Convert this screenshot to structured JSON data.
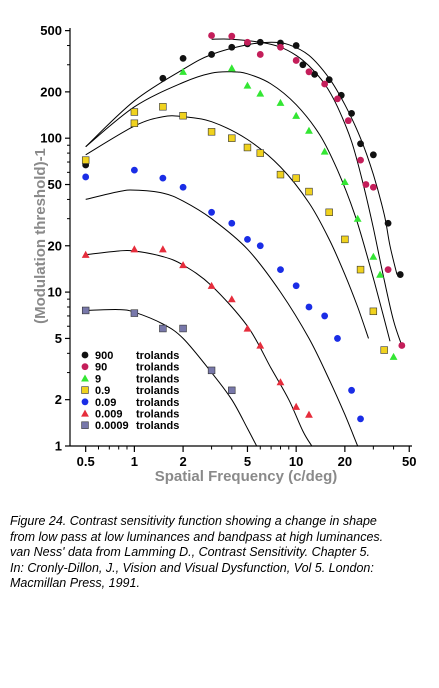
{
  "chart_data": {
    "type": "scatter",
    "title": "",
    "xlabel": "Spatial Frequency (c/deg)",
    "ylabel": "(Modulation threshold)-1",
    "xscale": "log",
    "yscale": "log",
    "xlim": [
      0.4,
      52
    ],
    "ylim": [
      1,
      520
    ],
    "xticks": [
      0.5,
      1,
      2,
      5,
      10,
      20,
      50
    ],
    "xtick_labels": [
      "0.5",
      "1",
      "2",
      "5",
      "10",
      "20",
      "50"
    ],
    "yticks": [
      1,
      2,
      5,
      10,
      20,
      50,
      100,
      200,
      500
    ],
    "ytick_labels": [
      "1",
      "2",
      "5",
      "10",
      "20",
      "50",
      "100",
      "200",
      "500"
    ],
    "legend_position": "bottom-left",
    "grid": false,
    "series": [
      {
        "name": "900",
        "unit": "trolands",
        "marker": "circle",
        "color": "#111111",
        "points": [
          [
            0.5,
            67
          ],
          [
            1.5,
            245
          ],
          [
            2,
            330
          ],
          [
            3,
            350
          ],
          [
            4,
            390
          ],
          [
            5,
            410
          ],
          [
            6,
            420
          ],
          [
            8,
            415
          ],
          [
            10,
            400
          ],
          [
            11,
            300
          ],
          [
            13,
            260
          ],
          [
            16,
            240
          ],
          [
            19,
            190
          ],
          [
            22,
            145
          ],
          [
            25,
            92
          ],
          [
            30,
            78
          ],
          [
            37,
            28
          ],
          [
            44,
            13
          ]
        ],
        "curve": [
          [
            0.5,
            88
          ],
          [
            1,
            175
          ],
          [
            2,
            280
          ],
          [
            3,
            350
          ],
          [
            5,
            405
          ],
          [
            7,
            420
          ],
          [
            9,
            405
          ],
          [
            12,
            345
          ],
          [
            16,
            245
          ],
          [
            20,
            165
          ],
          [
            25,
            100
          ],
          [
            30,
            58
          ],
          [
            35,
            32
          ],
          [
            38,
            20
          ],
          [
            42,
            13
          ]
        ]
      },
      {
        "name": "90",
        "unit": "trolands",
        "marker": "circle",
        "color": "#c41e5a",
        "points": [
          [
            3,
            465
          ],
          [
            4,
            460
          ],
          [
            5,
            420
          ],
          [
            6,
            350
          ],
          [
            8,
            390
          ],
          [
            10,
            320
          ],
          [
            12,
            270
          ],
          [
            15,
            225
          ],
          [
            18,
            180
          ],
          [
            21,
            130
          ],
          [
            25,
            72
          ],
          [
            27,
            50
          ],
          [
            30,
            48
          ],
          [
            37,
            14
          ],
          [
            45,
            4.5
          ]
        ],
        "curve": [
          [
            3,
            440
          ],
          [
            4,
            440
          ],
          [
            6,
            420
          ],
          [
            8,
            390
          ],
          [
            10,
            345
          ],
          [
            12,
            295
          ],
          [
            15,
            225
          ],
          [
            18,
            160
          ],
          [
            22,
            95
          ],
          [
            26,
            50
          ],
          [
            30,
            26
          ],
          [
            35,
            12
          ],
          [
            40,
            6.5
          ],
          [
            45,
            4.5
          ]
        ]
      },
      {
        "name": "9",
        "unit": "trolands",
        "marker": "triangle",
        "color": "#33e633",
        "points": [
          [
            2,
            270
          ],
          [
            4,
            285
          ],
          [
            5,
            220
          ],
          [
            6,
            195
          ],
          [
            8,
            170
          ],
          [
            10,
            140
          ],
          [
            12,
            112
          ],
          [
            15,
            82
          ],
          [
            20,
            52
          ],
          [
            24,
            30
          ],
          [
            30,
            17
          ],
          [
            33,
            13
          ],
          [
            40,
            3.8
          ]
        ],
        "curve": [
          [
            0.5,
            88
          ],
          [
            1,
            160
          ],
          [
            2,
            230
          ],
          [
            3,
            265
          ],
          [
            4,
            270
          ],
          [
            5,
            262
          ],
          [
            7,
            225
          ],
          [
            10,
            165
          ],
          [
            14,
            105
          ],
          [
            18,
            62
          ],
          [
            23,
            32
          ],
          [
            28,
            16
          ],
          [
            33,
            8.5
          ],
          [
            38,
            4.8
          ]
        ]
      },
      {
        "name": "0.9",
        "unit": "trolands",
        "marker": "square",
        "color": "#f0d21e",
        "points": [
          [
            0.5,
            72
          ],
          [
            1,
            148
          ],
          [
            1,
            125
          ],
          [
            1.5,
            160
          ],
          [
            2,
            140
          ],
          [
            3,
            110
          ],
          [
            4,
            100
          ],
          [
            5,
            87
          ],
          [
            6,
            80
          ],
          [
            8,
            58
          ],
          [
            10,
            55
          ],
          [
            12,
            45
          ],
          [
            16,
            33
          ],
          [
            20,
            22
          ],
          [
            25,
            14
          ],
          [
            30,
            7.5
          ],
          [
            35,
            4.2
          ]
        ],
        "curve": [
          [
            0.5,
            78
          ],
          [
            1,
            120
          ],
          [
            1.5,
            138
          ],
          [
            2,
            138
          ],
          [
            3,
            128
          ],
          [
            5,
            98
          ],
          [
            8,
            65
          ],
          [
            12,
            38
          ],
          [
            16,
            22
          ],
          [
            20,
            13
          ],
          [
            24,
            8
          ],
          [
            28,
            5
          ]
        ]
      },
      {
        "name": "0.09",
        "unit": "trolands",
        "marker": "circle",
        "color": "#1a2de6",
        "points": [
          [
            0.5,
            56
          ],
          [
            1,
            62
          ],
          [
            1.5,
            55
          ],
          [
            2,
            48
          ],
          [
            3,
            33
          ],
          [
            4,
            28
          ],
          [
            5,
            22
          ],
          [
            6,
            20
          ],
          [
            8,
            14
          ],
          [
            10,
            11
          ],
          [
            12,
            8
          ],
          [
            15,
            7
          ],
          [
            18,
            5
          ],
          [
            22,
            2.3
          ],
          [
            25,
            1.5
          ]
        ],
        "curve": [
          [
            0.5,
            40
          ],
          [
            0.8,
            45
          ],
          [
            1,
            46
          ],
          [
            1.5,
            44
          ],
          [
            2,
            39
          ],
          [
            3,
            30
          ],
          [
            5,
            19
          ],
          [
            8,
            10
          ],
          [
            12,
            5
          ],
          [
            16,
            2.7
          ],
          [
            20,
            1.6
          ],
          [
            24,
            1
          ]
        ]
      },
      {
        "name": "0.009",
        "unit": "trolands",
        "marker": "triangle",
        "color": "#e62d3c",
        "points": [
          [
            0.5,
            17.5
          ],
          [
            1,
            19
          ],
          [
            1.5,
            19
          ],
          [
            2,
            15
          ],
          [
            3,
            11
          ],
          [
            4,
            9
          ],
          [
            5,
            5.8
          ],
          [
            6,
            4.5
          ],
          [
            8,
            2.6
          ],
          [
            10,
            1.8
          ],
          [
            12,
            1.6
          ]
        ],
        "curve": [
          [
            0.5,
            17.5
          ],
          [
            0.8,
            18.5
          ],
          [
            1,
            18.5
          ],
          [
            1.5,
            17
          ],
          [
            2,
            15
          ],
          [
            3,
            11
          ],
          [
            5,
            6
          ],
          [
            7,
            3.2
          ],
          [
            9,
            2
          ],
          [
            11,
            1.25
          ],
          [
            12.5,
            1
          ]
        ]
      },
      {
        "name": "0.0009",
        "unit": "trolands",
        "marker": "square",
        "color": "#7878aa",
        "points": [
          [
            0.5,
            7.6
          ],
          [
            1,
            7.3
          ],
          [
            1.5,
            5.8
          ],
          [
            2,
            5.8
          ],
          [
            3,
            3.1
          ],
          [
            4,
            2.3
          ]
        ],
        "curve": [
          [
            0.5,
            7.6
          ],
          [
            0.8,
            7.7
          ],
          [
            1,
            7.4
          ],
          [
            1.5,
            6.2
          ],
          [
            2,
            5
          ],
          [
            3,
            3
          ],
          [
            4,
            2
          ],
          [
            5,
            1.3
          ],
          [
            5.7,
            1
          ]
        ]
      }
    ]
  },
  "caption": {
    "lines": [
      "Figure 24. Contrast sensitivity function showing a change in shape",
      "from low pass at low luminances and bandpass at high luminances.",
      " van Ness' data from Lamming D., Contrast Sensitivity. Chapter 5.",
      " In: Cronly-Dillon, J., Vision and Visual Dysfunction, Vol 5. London:",
      "Macmillan Press, 1991."
    ]
  }
}
